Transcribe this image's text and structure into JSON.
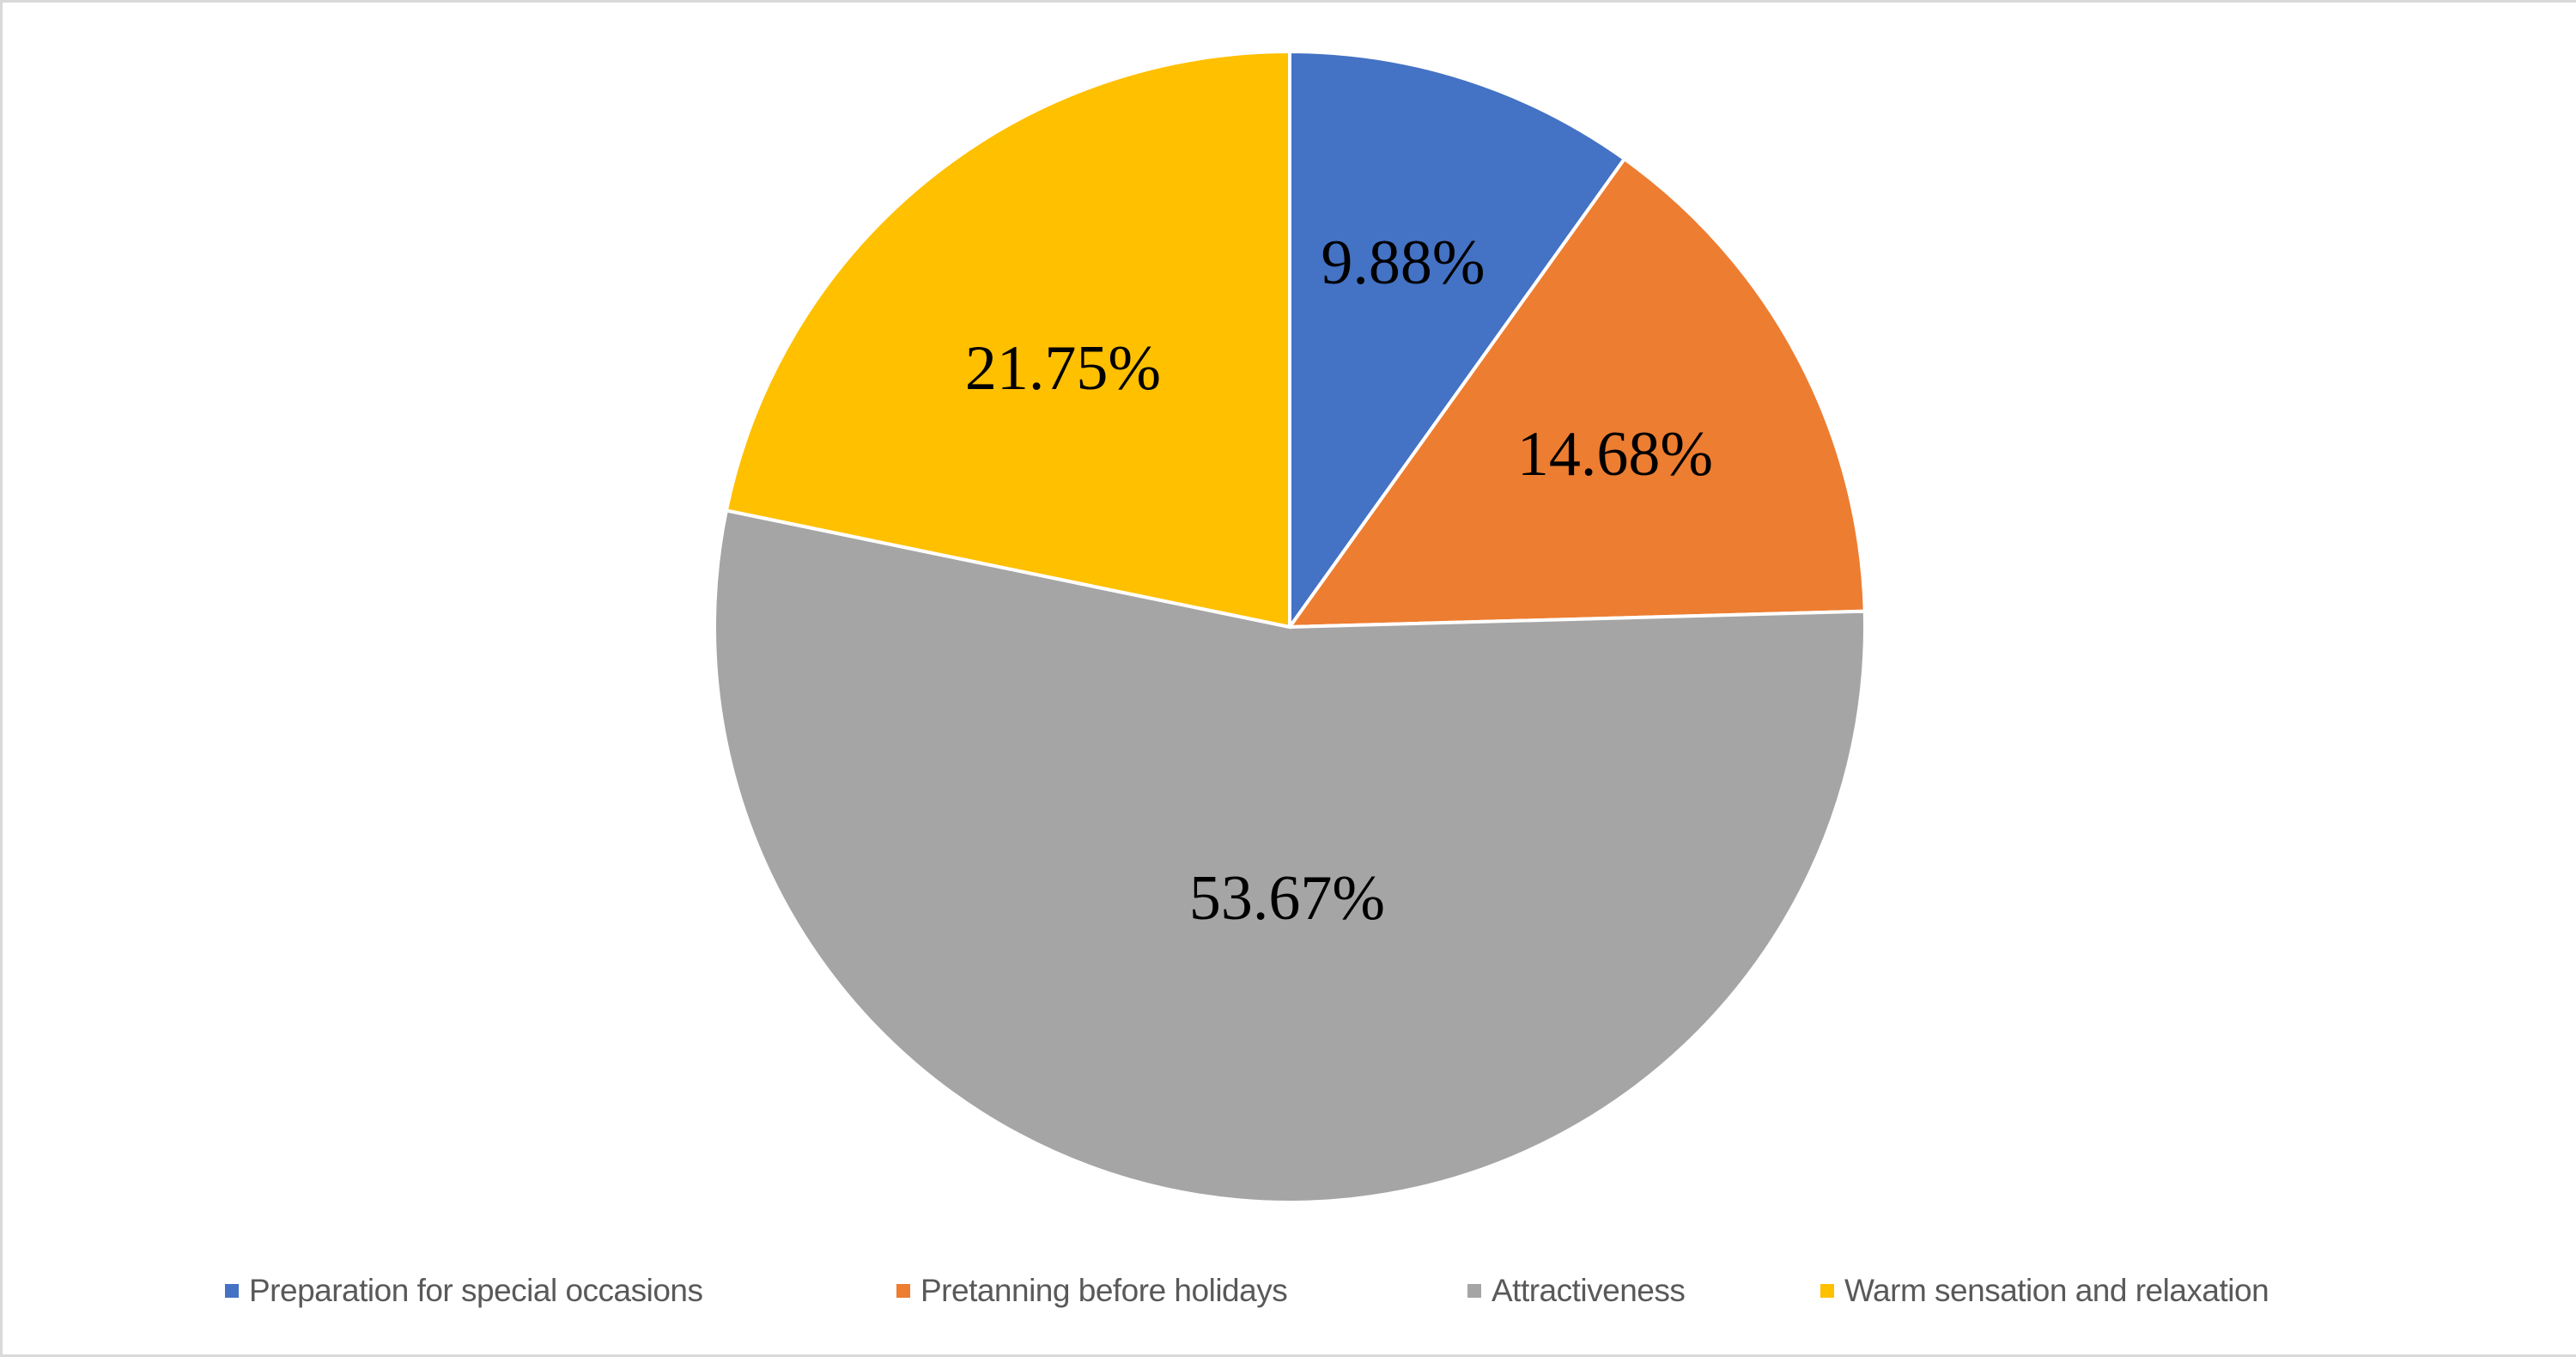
{
  "chart_data": {
    "type": "pie",
    "title": "",
    "start_angle_deg": 0,
    "direction": "clockwise",
    "categories": [
      "Preparation for special occasions",
      "Pretanning before holidays",
      "Attractiveness",
      "Warm sensation and relaxation"
    ],
    "values": [
      9.88,
      14.68,
      53.67,
      21.75
    ],
    "labels": [
      "9.88%",
      "14.68%",
      "53.67%",
      "21.75%"
    ],
    "colors": [
      "#4472C4",
      "#ED7D31",
      "#A5A5A5",
      "#FFC000"
    ],
    "legend_position": "bottom",
    "unit": "%"
  },
  "legend": {
    "items": [
      {
        "label": "Preparation for special occasions",
        "color": "#4472C4"
      },
      {
        "label": "Pretanning before holidays",
        "color": "#ED7D31"
      },
      {
        "label": "Attractiveness",
        "color": "#A5A5A5"
      },
      {
        "label": "Warm sensation and relaxation",
        "color": "#FFC000"
      }
    ]
  }
}
